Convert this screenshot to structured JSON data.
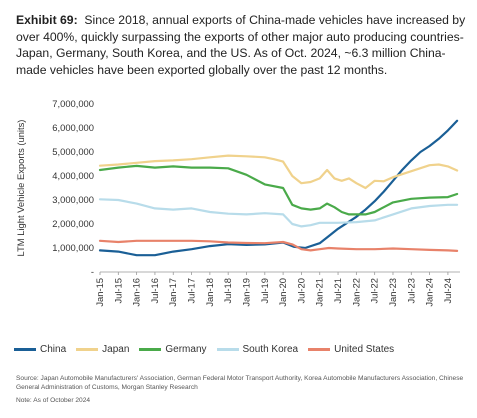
{
  "exhibit": {
    "label": "Exhibit 69:",
    "text": "Since 2018, annual exports of China-made vehicles have increased by over 400%, quickly surpassing the exports of other major auto producing countries- Japan, Germany, South Korea, and the US. As of Oct. 2024, ~6.3 million China-made vehicles have been exported globally over the past 12 months."
  },
  "footer": {
    "source": "Source: Japan Automobile Manufacturers' Association, German Federal Motor Transport Authority, Korea Automobile Manufacturers Association, Chinese General Administration of Customs, Morgan Stanley Research",
    "note": "Note: As of October 2024"
  },
  "chart_data": {
    "type": "line",
    "ylabel": "LTM Light Vehicle Exports (units)",
    "ylim": [
      0,
      7000000
    ],
    "yticks": [
      0,
      1000000,
      2000000,
      3000000,
      4000000,
      5000000,
      6000000,
      7000000
    ],
    "ytick_labels": [
      "-",
      "1,000,000",
      "2,000,000",
      "3,000,000",
      "4,000,000",
      "5,000,000",
      "6,000,000",
      "7,000,000"
    ],
    "xlim": [
      2015.0,
      2024.83
    ],
    "xtick_labels": [
      "Jan-15",
      "Jul-15",
      "Jan-16",
      "Jul-16",
      "Jan-17",
      "Jul-17",
      "Jan-18",
      "Jul-18",
      "Jan-19",
      "Jul-19",
      "Jan-20",
      "Jul-20",
      "Jan-21",
      "Jul-21",
      "Jan-22",
      "Jul-22",
      "Jan-23",
      "Jul-23",
      "Jan-24",
      "Jul-24"
    ],
    "grid": false,
    "legend_position": "bottom",
    "series": [
      {
        "name": "China",
        "color": "#1a5f96",
        "points": [
          [
            2015.0,
            900000
          ],
          [
            2015.5,
            850000
          ],
          [
            2016.0,
            700000
          ],
          [
            2016.5,
            700000
          ],
          [
            2017.0,
            850000
          ],
          [
            2017.5,
            950000
          ],
          [
            2018.0,
            1080000
          ],
          [
            2018.5,
            1160000
          ],
          [
            2019.0,
            1130000
          ],
          [
            2019.5,
            1150000
          ],
          [
            2020.0,
            1230000
          ],
          [
            2020.3,
            1050000
          ],
          [
            2020.6,
            1000000
          ],
          [
            2021.0,
            1200000
          ],
          [
            2021.25,
            1500000
          ],
          [
            2021.5,
            1800000
          ],
          [
            2021.75,
            2050000
          ],
          [
            2022.0,
            2300000
          ],
          [
            2022.25,
            2600000
          ],
          [
            2022.5,
            2950000
          ],
          [
            2022.75,
            3350000
          ],
          [
            2023.0,
            3800000
          ],
          [
            2023.25,
            4250000
          ],
          [
            2023.5,
            4650000
          ],
          [
            2023.75,
            5000000
          ],
          [
            2024.0,
            5250000
          ],
          [
            2024.25,
            5550000
          ],
          [
            2024.5,
            5900000
          ],
          [
            2024.75,
            6300000
          ]
        ]
      },
      {
        "name": "Japan",
        "color": "#f0d28c",
        "points": [
          [
            2015.0,
            4430000
          ],
          [
            2015.5,
            4480000
          ],
          [
            2016.0,
            4550000
          ],
          [
            2016.5,
            4620000
          ],
          [
            2017.0,
            4650000
          ],
          [
            2017.5,
            4700000
          ],
          [
            2018.0,
            4780000
          ],
          [
            2018.5,
            4850000
          ],
          [
            2019.0,
            4820000
          ],
          [
            2019.5,
            4780000
          ],
          [
            2019.75,
            4700000
          ],
          [
            2020.0,
            4600000
          ],
          [
            2020.25,
            4000000
          ],
          [
            2020.5,
            3700000
          ],
          [
            2020.75,
            3750000
          ],
          [
            2021.0,
            3900000
          ],
          [
            2021.2,
            4250000
          ],
          [
            2021.4,
            3900000
          ],
          [
            2021.6,
            3800000
          ],
          [
            2021.8,
            3900000
          ],
          [
            2022.0,
            3700000
          ],
          [
            2022.25,
            3500000
          ],
          [
            2022.5,
            3800000
          ],
          [
            2022.75,
            3780000
          ],
          [
            2023.0,
            3950000
          ],
          [
            2023.5,
            4200000
          ],
          [
            2024.0,
            4450000
          ],
          [
            2024.25,
            4480000
          ],
          [
            2024.5,
            4400000
          ],
          [
            2024.75,
            4230000
          ]
        ]
      },
      {
        "name": "Germany",
        "color": "#4aaa4a",
        "points": [
          [
            2015.0,
            4250000
          ],
          [
            2015.5,
            4350000
          ],
          [
            2016.0,
            4420000
          ],
          [
            2016.5,
            4350000
          ],
          [
            2017.0,
            4400000
          ],
          [
            2017.5,
            4350000
          ],
          [
            2018.0,
            4350000
          ],
          [
            2018.5,
            4320000
          ],
          [
            2019.0,
            4050000
          ],
          [
            2019.5,
            3650000
          ],
          [
            2020.0,
            3500000
          ],
          [
            2020.25,
            2800000
          ],
          [
            2020.5,
            2650000
          ],
          [
            2020.75,
            2600000
          ],
          [
            2021.0,
            2650000
          ],
          [
            2021.2,
            2850000
          ],
          [
            2021.4,
            2700000
          ],
          [
            2021.6,
            2500000
          ],
          [
            2021.8,
            2400000
          ],
          [
            2022.0,
            2400000
          ],
          [
            2022.25,
            2400000
          ],
          [
            2022.5,
            2500000
          ],
          [
            2022.75,
            2700000
          ],
          [
            2023.0,
            2900000
          ],
          [
            2023.5,
            3050000
          ],
          [
            2024.0,
            3100000
          ],
          [
            2024.5,
            3120000
          ],
          [
            2024.75,
            3250000
          ]
        ]
      },
      {
        "name": "South Korea",
        "color": "#b8dcea",
        "points": [
          [
            2015.0,
            3030000
          ],
          [
            2015.5,
            3000000
          ],
          [
            2016.0,
            2850000
          ],
          [
            2016.5,
            2650000
          ],
          [
            2017.0,
            2600000
          ],
          [
            2017.5,
            2650000
          ],
          [
            2018.0,
            2500000
          ],
          [
            2018.5,
            2430000
          ],
          [
            2019.0,
            2400000
          ],
          [
            2019.5,
            2450000
          ],
          [
            2020.0,
            2400000
          ],
          [
            2020.25,
            2000000
          ],
          [
            2020.5,
            1900000
          ],
          [
            2020.75,
            1950000
          ],
          [
            2021.0,
            2050000
          ],
          [
            2021.5,
            2050000
          ],
          [
            2022.0,
            2080000
          ],
          [
            2022.5,
            2150000
          ],
          [
            2023.0,
            2400000
          ],
          [
            2023.5,
            2650000
          ],
          [
            2024.0,
            2750000
          ],
          [
            2024.5,
            2800000
          ],
          [
            2024.75,
            2800000
          ]
        ]
      },
      {
        "name": "United States",
        "color": "#e8826a",
        "points": [
          [
            2015.0,
            1300000
          ],
          [
            2015.5,
            1250000
          ],
          [
            2016.0,
            1300000
          ],
          [
            2016.5,
            1300000
          ],
          [
            2017.0,
            1300000
          ],
          [
            2017.5,
            1300000
          ],
          [
            2018.0,
            1280000
          ],
          [
            2018.5,
            1230000
          ],
          [
            2019.0,
            1210000
          ],
          [
            2019.5,
            1200000
          ],
          [
            2020.0,
            1250000
          ],
          [
            2020.25,
            1150000
          ],
          [
            2020.5,
            950000
          ],
          [
            2020.75,
            900000
          ],
          [
            2021.0,
            950000
          ],
          [
            2021.25,
            1000000
          ],
          [
            2021.5,
            980000
          ],
          [
            2022.0,
            950000
          ],
          [
            2022.5,
            950000
          ],
          [
            2023.0,
            980000
          ],
          [
            2023.5,
            950000
          ],
          [
            2024.0,
            920000
          ],
          [
            2024.5,
            900000
          ],
          [
            2024.75,
            880000
          ]
        ]
      }
    ]
  }
}
